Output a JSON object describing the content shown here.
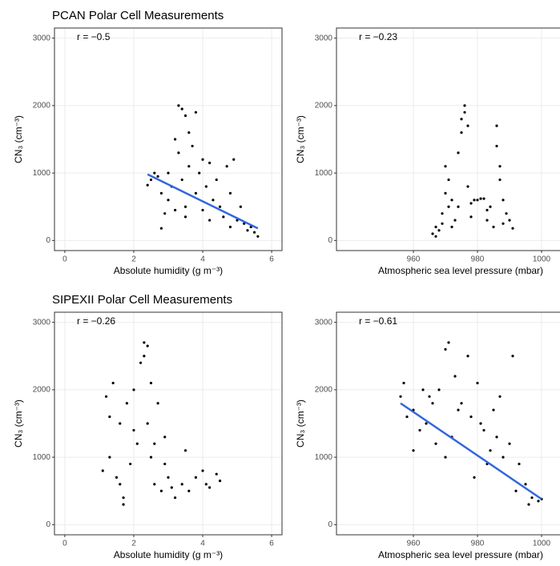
{
  "chart_data": [
    {
      "type": "scatter",
      "title": "PCAN Polar Cell Measurements",
      "annotation": "r = −0.5",
      "xlabel": "Absolute humidity (g m⁻³)",
      "ylabel": "CN₃ (cm⁻³)",
      "xlim": [
        -0.3,
        6.3
      ],
      "ylim": [
        -150,
        3150
      ],
      "xticks": [
        0,
        2,
        4,
        6
      ],
      "yticks": [
        0,
        1000,
        2000,
        3000
      ],
      "grid": true,
      "color": "#000000",
      "x": [
        2.4,
        2.5,
        2.6,
        2.7,
        2.8,
        2.9,
        3.0,
        3.1,
        3.2,
        3.3,
        3.3,
        3.4,
        3.4,
        3.5,
        3.5,
        3.6,
        3.6,
        3.7,
        3.8,
        3.9,
        4.0,
        4.0,
        4.1,
        4.2,
        4.3,
        4.4,
        4.5,
        4.6,
        4.7,
        4.8,
        4.9,
        5.0,
        5.1,
        5.2,
        5.3,
        5.4,
        5.5,
        5.6,
        3.2,
        3.5,
        3.8,
        4.2,
        4.8,
        3.0,
        2.8
      ],
      "values": [
        820,
        900,
        1000,
        950,
        700,
        400,
        600,
        800,
        1500,
        2000,
        1300,
        1950,
        900,
        1850,
        500,
        1600,
        1100,
        1400,
        700,
        1000,
        1200,
        450,
        800,
        1150,
        600,
        900,
        500,
        350,
        1100,
        700,
        1200,
        300,
        500,
        250,
        150,
        200,
        120,
        60,
        450,
        350,
        1900,
        300,
        200,
        1000,
        180
      ],
      "fit": {
        "x": [
          2.4,
          5.6
        ],
        "values": [
          980,
          180
        ],
        "color": "#3366dd"
      }
    },
    {
      "type": "scatter",
      "annotation": "r = −0.23",
      "xlabel": "Atmospheric sea level pressure (mbar)",
      "ylabel": "CN₃ (cm⁻³)",
      "xlim": [
        936,
        1011
      ],
      "ylim": [
        -150,
        3150
      ],
      "xticks": [
        960,
        980,
        1000
      ],
      "yticks": [
        0,
        1000,
        2000,
        3000
      ],
      "grid": true,
      "color": "#000000",
      "x": [
        966,
        967,
        968,
        969,
        970,
        970,
        971,
        971,
        972,
        973,
        974,
        975,
        975,
        976,
        976,
        977,
        977,
        978,
        979,
        980,
        981,
        982,
        983,
        984,
        985,
        986,
        986,
        987,
        987,
        988,
        989,
        990,
        991,
        969,
        972,
        974,
        978,
        983,
        988,
        967
      ],
      "values": [
        100,
        200,
        150,
        250,
        700,
        1100,
        900,
        500,
        600,
        300,
        1300,
        1600,
        1800,
        1900,
        2000,
        1700,
        800,
        550,
        600,
        600,
        620,
        620,
        300,
        500,
        200,
        1700,
        1400,
        1100,
        900,
        600,
        400,
        300,
        180,
        400,
        200,
        500,
        350,
        450,
        250,
        60
      ]
    },
    {
      "type": "scatter",
      "title": "SIPEXII Polar Cell Measurements",
      "annotation": "r = −0.26",
      "xlabel": "Absolute humidity (g m⁻³)",
      "ylabel": "CN₃ (cm⁻³)",
      "xlim": [
        -0.3,
        6.3
      ],
      "ylim": [
        -150,
        3150
      ],
      "xticks": [
        0,
        2,
        4,
        6
      ],
      "yticks": [
        0,
        1000,
        2000,
        3000
      ],
      "grid": true,
      "color": "#000000",
      "x": [
        1.1,
        1.2,
        1.3,
        1.4,
        1.5,
        1.6,
        1.7,
        1.8,
        1.9,
        2.0,
        2.1,
        2.2,
        2.3,
        2.4,
        2.4,
        2.5,
        2.5,
        2.6,
        2.7,
        2.8,
        2.9,
        3.0,
        3.1,
        3.2,
        3.4,
        3.6,
        3.8,
        4.0,
        4.2,
        4.4,
        4.5,
        1.3,
        1.6,
        2.0,
        2.3,
        2.6,
        2.9,
        3.5,
        4.1,
        1.7
      ],
      "values": [
        800,
        1900,
        1000,
        2100,
        700,
        1500,
        300,
        1800,
        900,
        2000,
        1200,
        2400,
        2700,
        2650,
        1500,
        2100,
        1000,
        600,
        1800,
        500,
        1300,
        700,
        550,
        400,
        600,
        500,
        700,
        800,
        550,
        750,
        650,
        1600,
        600,
        1400,
        2500,
        1200,
        900,
        1100,
        600,
        400
      ]
    },
    {
      "type": "scatter",
      "annotation": "r = −0.61",
      "xlabel": "Atmospheric sea level pressure (mbar)",
      "ylabel": "CN₃ (cm⁻³)",
      "xlim": [
        936,
        1011
      ],
      "ylim": [
        -150,
        3150
      ],
      "xticks": [
        960,
        980,
        1000
      ],
      "yticks": [
        0,
        1000,
        2000,
        3000
      ],
      "grid": true,
      "color": "#000000",
      "x": [
        956,
        957,
        958,
        960,
        962,
        964,
        965,
        967,
        968,
        970,
        971,
        972,
        973,
        975,
        977,
        978,
        980,
        982,
        983,
        985,
        986,
        988,
        990,
        991,
        993,
        995,
        997,
        999,
        1000,
        960,
        966,
        970,
        974,
        979,
        984,
        987,
        992,
        996,
        963,
        981
      ],
      "values": [
        1900,
        2100,
        1600,
        1700,
        1400,
        1500,
        1900,
        1200,
        2000,
        2600,
        2700,
        1300,
        2200,
        1800,
        2500,
        1600,
        2100,
        1400,
        900,
        1700,
        1300,
        1000,
        1200,
        2500,
        900,
        600,
        400,
        350,
        380,
        1100,
        1800,
        1000,
        1700,
        700,
        1100,
        1900,
        500,
        300,
        2000,
        1500
      ],
      "fit": {
        "x": [
          956,
          1000
        ],
        "values": [
          1800,
          380
        ],
        "color": "#3366dd"
      }
    }
  ]
}
